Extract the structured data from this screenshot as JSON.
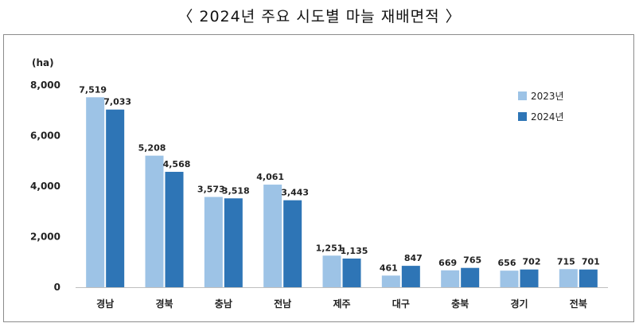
{
  "title": "〈 2024년 주요 시도별 마늘 재배면적 〉",
  "chart_data": {
    "type": "bar",
    "unit_label": "(ha)",
    "categories": [
      "경남",
      "경북",
      "충남",
      "전남",
      "제주",
      "대구",
      "충북",
      "경기",
      "전북"
    ],
    "series": [
      {
        "name": "2023년",
        "color": "#9dc3e6",
        "values": [
          7519,
          5208,
          3573,
          4061,
          1251,
          461,
          669,
          656,
          715
        ],
        "labels": [
          "7,519",
          "5,208",
          "3,573",
          "4,061",
          "1,251",
          "461",
          "669",
          "656",
          "715"
        ]
      },
      {
        "name": "2024년",
        "color": "#2e75b6",
        "values": [
          7033,
          4568,
          3518,
          3443,
          1135,
          847,
          765,
          702,
          701
        ],
        "labels": [
          "7,033",
          "4,568",
          "3,518",
          "3,443",
          "1,135",
          "847",
          "765",
          "702",
          "701"
        ]
      }
    ],
    "ylim": [
      0,
      8000
    ],
    "yticks": [
      0,
      2000,
      4000,
      6000,
      8000
    ],
    "ytick_labels": [
      "0",
      "2,000",
      "4,000",
      "6,000",
      "8,000"
    ],
    "grid": false,
    "legend_position": "top-right"
  }
}
